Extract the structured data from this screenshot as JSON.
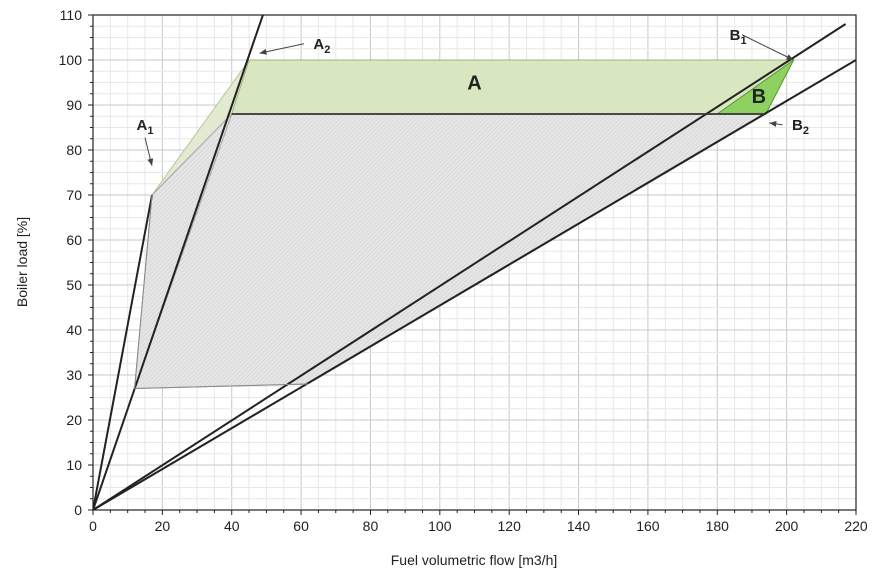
{
  "chart_data": {
    "type": "line",
    "title": "",
    "xlabel": "Fuel volumetric flow [m3/h]",
    "ylabel": "Boiler load [%]",
    "xlim": [
      0,
      220
    ],
    "ylim": [
      0,
      110
    ],
    "xticks": [
      0,
      20,
      40,
      60,
      80,
      100,
      120,
      140,
      160,
      180,
      200,
      220
    ],
    "yticks": [
      0,
      10,
      20,
      30,
      40,
      50,
      60,
      70,
      80,
      90,
      100,
      110
    ],
    "grid": true,
    "x_minor_per_major": 4,
    "y_minor_per_major": 4,
    "lines": [
      {
        "x": [
          0,
          17
        ],
        "y": [
          0,
          70
        ]
      },
      {
        "x": [
          0,
          49
        ],
        "y": [
          0,
          110
        ]
      },
      {
        "x": [
          0,
          217
        ],
        "y": [
          0,
          108
        ]
      },
      {
        "x": [
          0,
          220
        ],
        "y": [
          0,
          100
        ]
      }
    ],
    "regions": [
      {
        "label": "",
        "points": [
          [
            17,
            70
          ],
          [
            45,
            100
          ],
          [
            202,
            100
          ],
          [
            194,
            88
          ],
          [
            40,
            88
          ]
        ],
        "color": "#e2ebd2",
        "stroke": "#b5c79a"
      },
      {
        "label": "",
        "points": [
          [
            40,
            88
          ],
          [
            194,
            88
          ],
          [
            62,
            28
          ],
          [
            12,
            27
          ]
        ],
        "color": "#e5e5e5",
        "stroke": "#a8a8a8"
      },
      {
        "label": "",
        "points": [
          [
            17,
            70
          ],
          [
            40,
            88
          ],
          [
            12,
            27
          ]
        ],
        "color": "#e5e5e5",
        "stroke": "#a8a8a8"
      },
      {
        "label": "",
        "points": [
          [
            45,
            100
          ],
          [
            202,
            100
          ],
          [
            180,
            88
          ],
          [
            40,
            88
          ]
        ],
        "color": "#d8e7c0",
        "stroke": "#9fb57d"
      },
      {
        "label": "",
        "points": [
          [
            202,
            100
          ],
          [
            194,
            88
          ],
          [
            180,
            88
          ]
        ],
        "color": "#8fd160",
        "stroke": "#5a9a35"
      }
    ],
    "segments": [
      {
        "x": [
          40,
          194
        ],
        "y": [
          88,
          88
        ]
      },
      {
        "x": [
          17,
          12
        ],
        "y": [
          70,
          27
        ]
      },
      {
        "x": [
          12,
          62
        ],
        "y": [
          27,
          28
        ]
      }
    ],
    "region_labels": [
      {
        "text": "A",
        "x": 110,
        "y": 95
      },
      {
        "text": "B",
        "x": 192,
        "y": 92
      }
    ],
    "point_labels": [
      {
        "main": "A",
        "sub": "1",
        "x": 15,
        "y": 84.5,
        "target": [
          17,
          76.5
        ]
      },
      {
        "main": "A",
        "sub": "2",
        "x": 66,
        "y": 102.5,
        "target": [
          48,
          101.5
        ]
      },
      {
        "main": "B",
        "sub": "1",
        "x": 186,
        "y": 104.5,
        "target": [
          202,
          100
        ]
      },
      {
        "main": "B",
        "sub": "2",
        "x": 204,
        "y": 84.5,
        "target": [
          195,
          86
        ]
      }
    ],
    "colors": {
      "line": "#222222",
      "grid_major": "#c8c8c8",
      "grid_minor": "#e8e8e8",
      "axis": "#222222"
    }
  }
}
